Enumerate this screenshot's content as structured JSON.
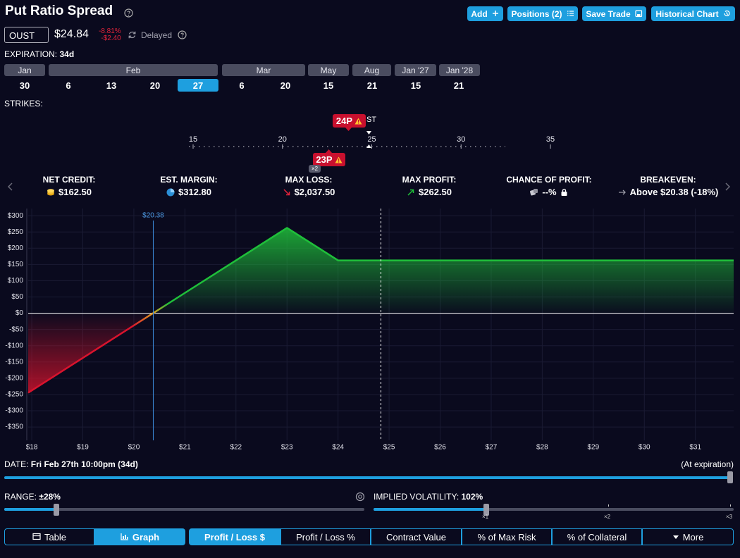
{
  "header": {
    "title": "Put Ratio Spread",
    "buttons": [
      "Add",
      "Positions (2)",
      "Save Trade",
      "Historical Chart"
    ]
  },
  "ticker": {
    "symbol": "OUST",
    "price": {
      "value": 24.84,
      "label": "$24.84"
    },
    "change_percent": "-8.81%",
    "change": "-$2.40",
    "status": "Delayed"
  },
  "expiration": {
    "label": "EXPIRATION:",
    "days": "34d",
    "months": [
      "Jan",
      "Feb",
      "Mar",
      "May",
      "Aug",
      "Jan '27",
      "Jan '28"
    ],
    "dates": [
      30,
      6,
      13,
      20,
      27,
      6,
      20,
      15,
      21,
      15,
      21
    ],
    "selected_date": 4
  },
  "strikes": {
    "label": "STRIKES:",
    "ticks": [
      15,
      20,
      25,
      30,
      35
    ],
    "lim": [
      15,
      35
    ],
    "legs": [
      {
        "label": "24P"
      },
      {
        "label": "23P",
        "quantity": "×2"
      }
    ],
    "price_tag": "ST"
  },
  "stats": [
    {
      "label": "NET CREDIT:",
      "value": "$162.50"
    },
    {
      "label": "EST. MARGIN:",
      "value": "$312.80"
    },
    {
      "label": "MAX LOSS:",
      "value": "$2,037.50"
    },
    {
      "label": "MAX PROFIT:",
      "value": "$262.50"
    },
    {
      "label": "CHANCE OF PROFIT:",
      "value": "--%"
    },
    {
      "label": "BREAKEVEN:",
      "value": "Above $20.38 (-18%)"
    }
  ],
  "chart_data": {
    "type": "line",
    "x": [
      17.93,
      23,
      24,
      31.75
    ],
    "values": [
      -244.5,
      262.5,
      162.5,
      162.5
    ],
    "xlim": [
      17.93,
      31.75
    ],
    "ylim": [
      -391,
      322
    ],
    "xticks": [
      {
        "value": 18,
        "label": "$18"
      },
      {
        "value": 19,
        "label": "$19"
      },
      {
        "value": 20,
        "label": "$20"
      },
      {
        "value": 21,
        "label": "$21"
      },
      {
        "value": 22,
        "label": "$22"
      },
      {
        "value": 23,
        "label": "$23"
      },
      {
        "value": 24,
        "label": "$24"
      },
      {
        "value": 25,
        "label": "$25"
      },
      {
        "value": 26,
        "label": "$26"
      },
      {
        "value": 27,
        "label": "$27"
      },
      {
        "value": 28,
        "label": "$28"
      },
      {
        "value": 29,
        "label": "$29"
      },
      {
        "value": 30,
        "label": "$30"
      },
      {
        "value": 31,
        "label": "$31"
      }
    ],
    "yticks": [
      {
        "value": 300,
        "label": "$300"
      },
      {
        "value": 250,
        "label": "$250"
      },
      {
        "value": 200,
        "label": "$200"
      },
      {
        "value": 150,
        "label": "$150"
      },
      {
        "value": 100,
        "label": "$100"
      },
      {
        "value": 50,
        "label": "$50"
      },
      {
        "value": 0,
        "label": "$0"
      },
      {
        "value": -50,
        "label": "-$50"
      },
      {
        "value": -100,
        "label": "-$100"
      },
      {
        "value": -150,
        "label": "-$150"
      },
      {
        "value": -200,
        "label": "-$200"
      },
      {
        "value": -250,
        "label": "-$250"
      },
      {
        "value": -300,
        "label": "-$300"
      },
      {
        "value": -350,
        "label": "-$350"
      }
    ],
    "breakeven": {
      "value": 20.38,
      "label": "$20.38"
    },
    "colors": {
      "profit": "#1fbf3a",
      "loss": "#d8132d"
    },
    "grid": true
  },
  "date_bar": {
    "label": "DATE:",
    "value": "Fri Feb 27th 10:00pm (34d)",
    "note": "(At expiration)"
  },
  "range": {
    "label": "RANGE:",
    "value": "±28%"
  },
  "iv": {
    "label": "IMPLIED VOLATILITY:",
    "value": "102%",
    "scale": [
      "×1",
      "×2",
      "×3"
    ]
  },
  "view_tabs": [
    "Table",
    "Graph"
  ],
  "metric_tabs": [
    "Profit / Loss $",
    "Profit / Loss %",
    "Contract Value",
    "% of Max Risk",
    "% of Collateral",
    "More"
  ]
}
